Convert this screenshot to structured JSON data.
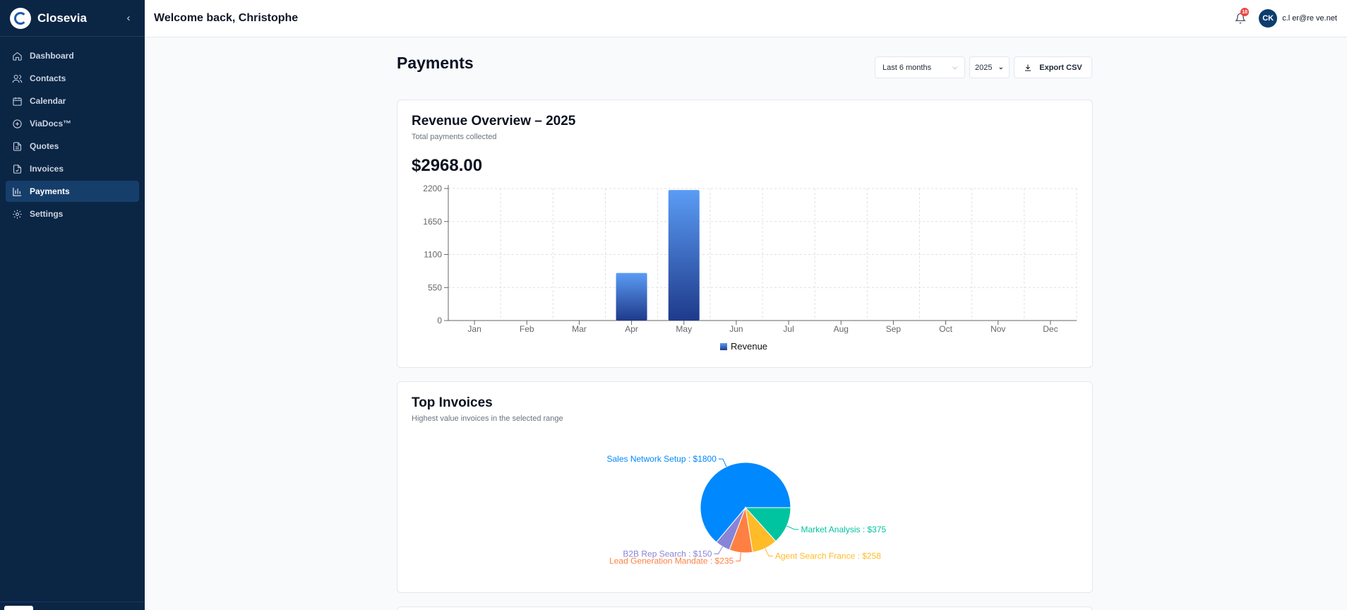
{
  "sidebar": {
    "brand": "Closevia",
    "collapse_icon": "chevron-left-icon",
    "items": [
      {
        "label": "Dashboard",
        "icon": "home-icon",
        "active": false
      },
      {
        "label": "Contacts",
        "icon": "users-icon",
        "active": false
      },
      {
        "label": "Calendar",
        "icon": "calendar-icon",
        "active": false
      },
      {
        "label": "ViaDocs™",
        "icon": "plus-circle-icon",
        "active": false
      },
      {
        "label": "Quotes",
        "icon": "file-text-icon",
        "active": false
      },
      {
        "label": "Invoices",
        "icon": "file-check-icon",
        "active": false
      },
      {
        "label": "Payments",
        "icon": "bar-chart-icon",
        "active": true
      },
      {
        "label": "Settings",
        "icon": "gear-icon",
        "active": false
      }
    ]
  },
  "header": {
    "welcome": "Welcome back, Christophe",
    "notification_count": "18",
    "avatar_initials": "CK",
    "email": "c.l    er@re    ve.net"
  },
  "page": {
    "title": "Payments",
    "range_select": "Last 6 months",
    "year_select": "2025",
    "export_label": "Export CSV"
  },
  "revenue": {
    "title": "Revenue Overview – 2025",
    "subtitle": "Total payments collected",
    "total": "$2968.00"
  },
  "invoices": {
    "title": "Top Invoices",
    "subtitle": "Highest value invoices in the selected range"
  },
  "colors": {
    "sidebar_bg": "#0b2545",
    "bar_top": "#5b9cf5",
    "bar_bottom": "#1e3a8a"
  },
  "chart_data": [
    {
      "type": "bar",
      "categories": [
        "Jan",
        "Feb",
        "Mar",
        "Apr",
        "May",
        "Jun",
        "Jul",
        "Aug",
        "Sep",
        "Oct",
        "Nov",
        "Dec"
      ],
      "series": [
        {
          "name": "Revenue",
          "values": [
            0,
            0,
            0,
            793,
            2175,
            0,
            0,
            0,
            0,
            0,
            0,
            0
          ]
        }
      ],
      "yticks": [
        0,
        550,
        1100,
        1650,
        2200
      ],
      "ylim": [
        0,
        2200
      ],
      "grid": true,
      "legend": "bottom"
    },
    {
      "type": "pie",
      "slices": [
        {
          "label": "Sales Network Setup",
          "value": 1800,
          "display": "Sales Network Setup : $1800",
          "color": "#0088fe"
        },
        {
          "label": "B2B Rep Search",
          "value": 150,
          "display": "B2B Rep Search : $150",
          "color": "#8884d8"
        },
        {
          "label": "Lead Generation Mandate",
          "value": 235,
          "display": "Lead Generation Mandate : $235",
          "color": "#ff8042"
        },
        {
          "label": "Agent Search France",
          "value": 258,
          "display": "Agent Search France : $258",
          "color": "#ffbb28"
        },
        {
          "label": "Market Analysis",
          "value": 375,
          "display": "Market Analysis : $375",
          "color": "#00c49f"
        }
      ]
    }
  ]
}
